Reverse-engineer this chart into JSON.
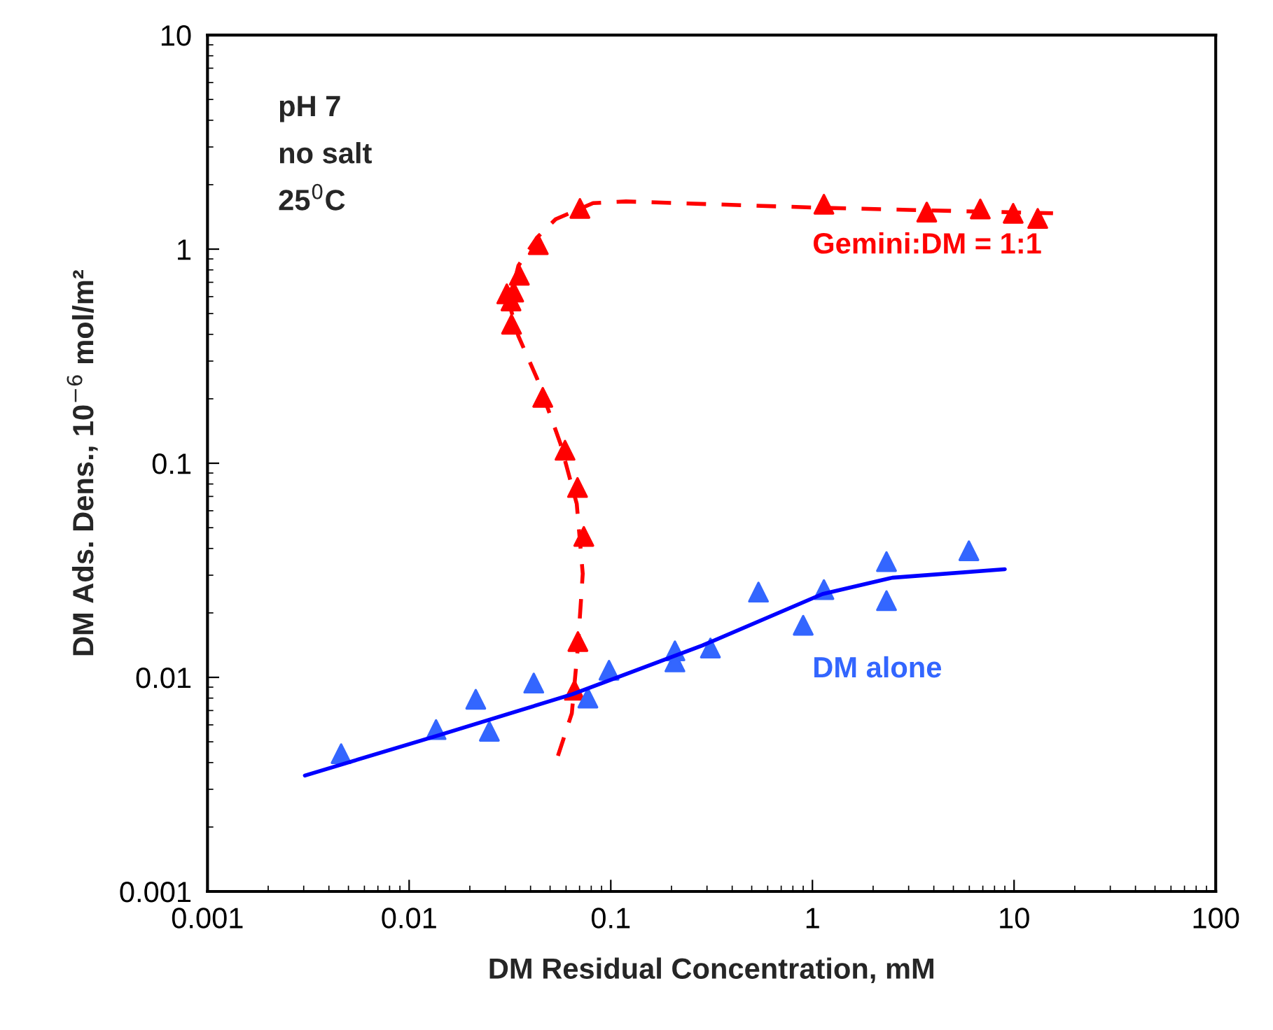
{
  "chart_data": {
    "type": "scatter",
    "log": "xy",
    "xlabel": "DM Residual Concentration, mM",
    "ylabel": "DM Ads. Dens., 10$^{−6}$ mol/m²",
    "xlim": [
      0.001,
      100
    ],
    "xticks": [
      0.001,
      0.01,
      0.1,
      1,
      10,
      100
    ],
    "ylim": [
      0.001,
      10
    ],
    "yticks": [
      0.001,
      0.01,
      0.1,
      1,
      10
    ],
    "grid": false,
    "annotations": [
      "pH 7",
      "no salt",
      "25$^{0}$C"
    ],
    "series": [
      {
        "type": "line",
        "color": "#ff0000",
        "line_style": "dashed",
        "marker": "none",
        "x": [
          0.0547,
          0.0641,
          0.0687,
          0.0726,
          0.0678,
          0.0562,
          0.043,
          0.0348,
          0.0313,
          0.0348,
          0.043,
          0.0533,
          0.0817,
          0.119,
          1.1,
          15.6
        ],
        "values": [
          0.0043,
          0.0068,
          0.0139,
          0.0305,
          0.0646,
          0.124,
          0.25,
          0.393,
          0.559,
          0.836,
          1.13,
          1.38,
          1.64,
          1.67,
          1.56,
          1.47
        ]
      },
      {
        "name": "Gemini:DM = 1:1",
        "color": "#ff0000",
        "marker": "triangle",
        "x": [
          0.0703,
          0.0437,
          0.0352,
          0.033,
          0.0305,
          0.032,
          0.0322,
          0.046,
          0.0593,
          0.0684,
          0.0735,
          0.0687,
          0.066,
          1.14,
          3.69,
          6.8,
          9.9,
          13.1
        ],
        "values": [
          1.55,
          1.05,
          0.755,
          0.63,
          0.618,
          0.573,
          0.446,
          0.203,
          0.115,
          0.077,
          0.0455,
          0.0147,
          0.0087,
          1.62,
          1.49,
          1.54,
          1.47,
          1.39
        ]
      },
      {
        "type": "line",
        "color": "#0000ff",
        "line_style": "solid",
        "marker": "none",
        "x": [
          0.00304,
          0.0138,
          0.0645,
          0.285,
          1.12,
          2.49,
          9.0
        ],
        "values": [
          0.00348,
          0.00534,
          0.00834,
          0.0141,
          0.0245,
          0.0292,
          0.032
        ]
      },
      {
        "name": "DM alone",
        "color": "#3366ff",
        "marker": "triangle",
        "x": [
          0.0046,
          0.0136,
          0.0214,
          0.025,
          0.0415,
          0.077,
          0.098,
          0.208,
          0.208,
          0.312,
          0.54,
          0.9,
          1.14,
          2.33,
          2.33,
          5.97
        ],
        "values": [
          0.0044,
          0.0057,
          0.0079,
          0.0056,
          0.0094,
          0.008,
          0.0108,
          0.0133,
          0.0118,
          0.0137,
          0.025,
          0.0175,
          0.0257,
          0.0347,
          0.0228,
          0.039
        ]
      }
    ]
  }
}
